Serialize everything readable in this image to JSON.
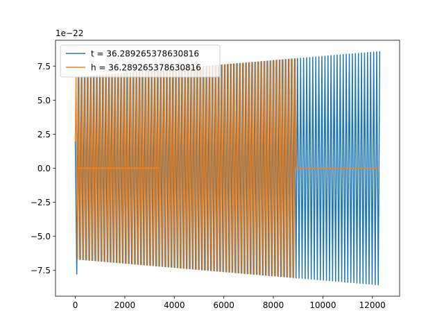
{
  "chart_data": {
    "type": "line",
    "title": "",
    "xlabel": "",
    "ylabel": "",
    "y_offset_label": "1e−22",
    "xlim": [
      -800,
      13100
    ],
    "ylim": [
      -9.4,
      9.4
    ],
    "xticks": [
      0,
      2000,
      4000,
      6000,
      8000,
      10000,
      12000
    ],
    "xtick_labels": [
      "0",
      "2000",
      "4000",
      "6000",
      "8000",
      "10000",
      "12000"
    ],
    "yticks": [
      -7.5,
      -5.0,
      -2.5,
      0.0,
      2.5,
      5.0,
      7.5
    ],
    "ytick_labels": [
      "−7.5",
      "−5.0",
      "−2.5",
      "0.0",
      "2.5",
      "5.0",
      "7.5"
    ],
    "grid": false,
    "legend_position": "upper-left",
    "series": [
      {
        "name": "t = 36.289265378630816",
        "color": "#1f77b4",
        "x_range": [
          0,
          12300
        ],
        "oscillation_period": 123,
        "amplitude_start": 6.7,
        "amplitude_end": 8.6,
        "note_segments": [
          {
            "x": [
              0,
              60
            ],
            "y": [
              2.0,
              -7.8
            ]
          }
        ]
      },
      {
        "name": "h = 36.289265378630816",
        "color": "#ff7f0e",
        "x_range": [
          0,
          8920
        ],
        "oscillation_period": 123,
        "amplitude_start": 6.7,
        "amplitude_end": 8.6,
        "flat_segments": [
          {
            "x": [
              60,
              3400
            ],
            "y": 0.0
          },
          {
            "x": [
              8920,
              12300
            ],
            "y": 0.0
          }
        ]
      }
    ]
  }
}
